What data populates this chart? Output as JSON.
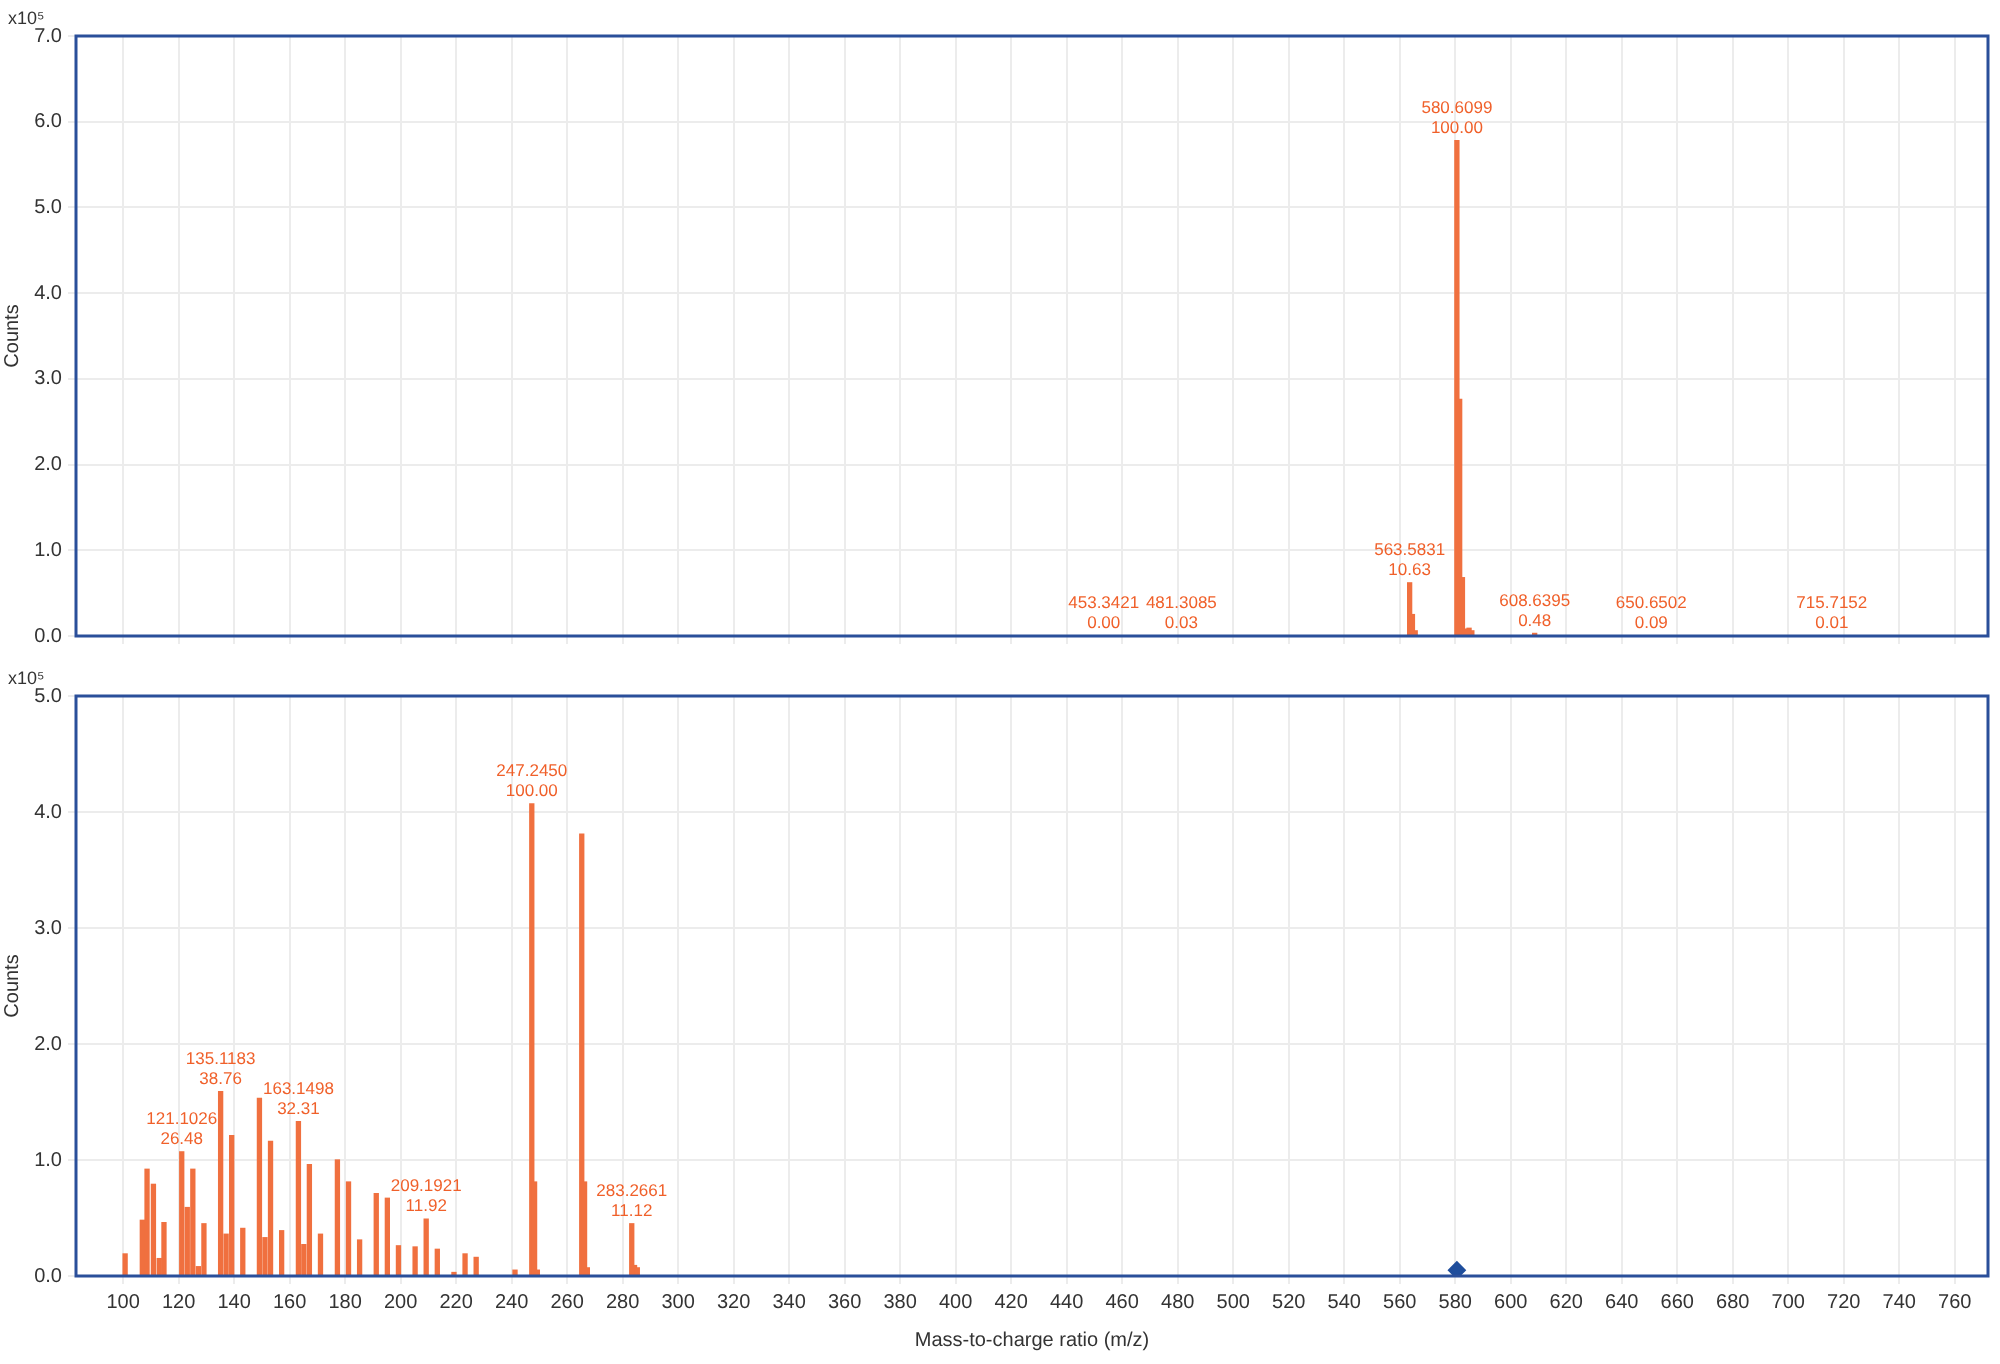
{
  "chart_data": [
    {
      "type": "bar",
      "ylabel": "Counts",
      "annotations": [
        "x10⁵",
        {
          "text": "453.3421\n0.00",
          "x": 453.3421,
          "y": 0
        },
        {
          "text": "481.3085\n0.03",
          "x": 481.3085,
          "y": 0
        },
        {
          "text": "563.5831\n10.63",
          "x": 563.5831,
          "y": 0.62
        },
        {
          "text": "580.6099\n100.00",
          "x": 580.6099,
          "y": 5.78
        },
        {
          "text": "608.6395\n0.48",
          "x": 608.6395,
          "y": 0.03
        },
        {
          "text": "650.6502\n0.09",
          "x": 650.6502,
          "y": 0
        },
        {
          "text": "715.7152\n0.01",
          "x": 715.7152,
          "y": 0
        }
      ],
      "xlim": [
        83,
        772
      ],
      "xticks": [
        100,
        120,
        140,
        160,
        180,
        200,
        220,
        240,
        260,
        280,
        300,
        320,
        340,
        360,
        380,
        400,
        420,
        440,
        460,
        480,
        500,
        520,
        540,
        560,
        580,
        600,
        620,
        640,
        660,
        680,
        700,
        720,
        740,
        760
      ],
      "ylim": [
        0,
        7
      ],
      "yticks": [
        {
          "value": 0,
          "label": "0.0"
        },
        {
          "value": 1,
          "label": "1.0"
        },
        {
          "value": 2,
          "label": "2.0"
        },
        {
          "value": 3,
          "label": "3.0"
        },
        {
          "value": 4,
          "label": "4.0"
        },
        {
          "value": 5,
          "label": "5.0"
        },
        {
          "value": 6,
          "label": "6.0"
        },
        {
          "value": 7,
          "label": "7.0"
        }
      ],
      "grid": true,
      "tick_labels": "y",
      "series": [
        {
          "color": "#f0703f",
          "x": [
            453.3421,
            481.3085,
            563.5831,
            564.59,
            565.59,
            580.6099,
            581.61,
            582.61,
            583.61,
            585.0,
            586.0,
            608.6395,
            650.6502,
            715.7152
          ],
          "values": [
            0,
            0,
            0.62,
            0.25,
            0.06,
            5.78,
            2.76,
            0.68,
            0.08,
            0.09,
            0.06,
            0.03,
            0,
            0
          ]
        }
      ]
    },
    {
      "type": "bar",
      "xlabel": "Mass-to-charge ratio (m/z)",
      "ylabel": "Counts",
      "annotations": [
        "x10⁵",
        {
          "text": "121.1026\n26.48",
          "x": 121.1026,
          "y": 1.07
        },
        {
          "text": "135.1183\n38.76",
          "x": 135.1183,
          "y": 1.59
        },
        {
          "text": "163.1498\n32.31",
          "x": 163.1498,
          "y": 1.33
        },
        {
          "text": "209.1921\n11.92",
          "x": 209.1921,
          "y": 0.49
        },
        {
          "text": "247.2450\n100.00",
          "x": 247.245,
          "y": 4.07
        },
        {
          "text": "283.2661\n11.12",
          "x": 283.2661,
          "y": 0.45
        }
      ],
      "xlim": [
        83,
        772
      ],
      "xticks": [
        100,
        120,
        140,
        160,
        180,
        200,
        220,
        240,
        260,
        280,
        300,
        320,
        340,
        360,
        380,
        400,
        420,
        440,
        460,
        480,
        500,
        520,
        540,
        560,
        580,
        600,
        620,
        640,
        660,
        680,
        700,
        720,
        740,
        760
      ],
      "ylim": [
        0,
        5
      ],
      "yticks": [
        {
          "value": 0,
          "label": "0.0"
        },
        {
          "value": 1,
          "label": "1.0"
        },
        {
          "value": 2,
          "label": "2.0"
        },
        {
          "value": 3,
          "label": "3.0"
        },
        {
          "value": 4,
          "label": "4.0"
        },
        {
          "value": 5,
          "label": "5.0"
        }
      ],
      "grid": true,
      "series": [
        {
          "color": "#f0703f",
          "x": [
            100.7,
            106.9,
            108.6,
            110.9,
            113.0,
            114.7,
            121.1026,
            123.1,
            125.1,
            127.1,
            129.1,
            135.1183,
            137.1,
            139.1,
            143.1,
            149.1,
            151.1,
            153.1,
            157.1,
            163.1498,
            165.1,
            167.1,
            171.1,
            177.2,
            181.2,
            185.2,
            191.2,
            195.2,
            199.2,
            205.2,
            209.1921,
            213.2,
            219.2,
            223.2,
            227.2,
            241.2,
            247.245,
            248.25,
            249.25,
            265.25,
            266.26,
            267.26,
            283.2661,
            284.27,
            285.27
          ],
          "values": [
            0.19,
            0.48,
            0.92,
            0.79,
            0.15,
            0.46,
            1.07,
            0.59,
            0.92,
            0.08,
            0.45,
            1.59,
            0.36,
            1.21,
            0.41,
            1.53,
            0.33,
            1.16,
            0.39,
            1.33,
            0.27,
            0.96,
            0.36,
            1.0,
            0.81,
            0.31,
            0.71,
            0.67,
            0.26,
            0.25,
            0.49,
            0.23,
            0.03,
            0.19,
            0.16,
            0.05,
            4.07,
            0.81,
            0.05,
            3.81,
            0.81,
            0.07,
            0.45,
            0.09,
            0.07
          ]
        },
        {
          "type": "scatter",
          "color": "#1f4e9c",
          "marker": "diamond",
          "x": [
            580.61
          ],
          "values": [
            0.05
          ]
        }
      ]
    }
  ]
}
